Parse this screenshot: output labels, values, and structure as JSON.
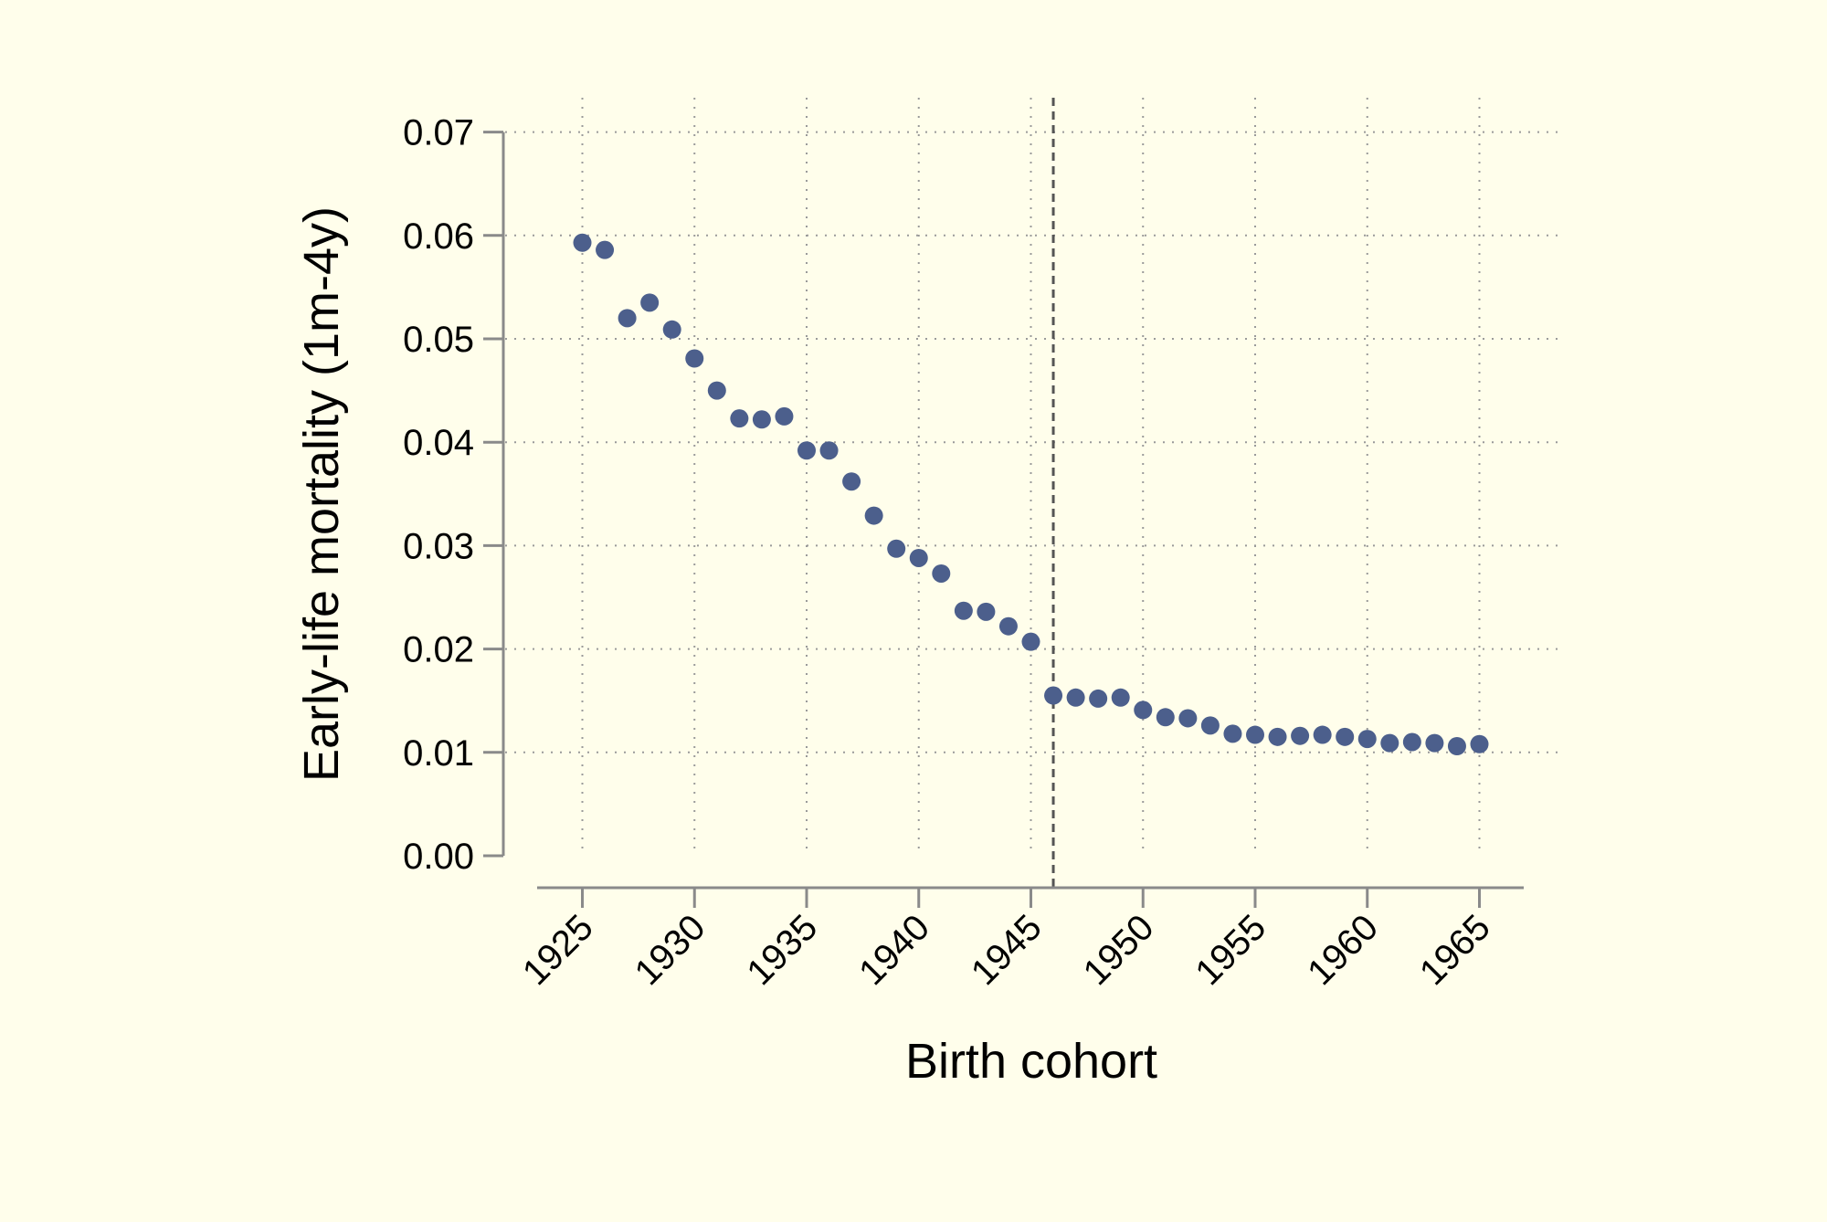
{
  "chart_data": {
    "type": "scatter",
    "title": "",
    "xlabel": "Birth cohort",
    "ylabel": "Early-life mortality (1m-4y)",
    "xlim": [
      1921.6,
      1967.2
    ],
    "ylim": [
      0,
      0.07
    ],
    "xticks": [
      1925,
      1930,
      1935,
      1940,
      1945,
      1950,
      1955,
      1960,
      1965
    ],
    "xtick_labels": [
      "1925",
      "1930",
      "1935",
      "1940",
      "1945",
      "1950",
      "1955",
      "1960",
      "1965"
    ],
    "yticks": [
      0,
      0.01,
      0.02,
      0.03,
      0.04,
      0.05,
      0.06,
      0.07
    ],
    "ytick_labels": [
      "0.00",
      "0.01",
      "0.02",
      "0.03",
      "0.04",
      "0.05",
      "0.06",
      "0.07"
    ],
    "grid": true,
    "reference_line_x": 1946,
    "colors": {
      "background": "#fffeeb",
      "marker": "#4c5f8c",
      "axis": "#8a8a8a",
      "grid": "#9a9a9a",
      "reference_line": "#555555"
    },
    "series": [
      {
        "x": [
          1925,
          1926,
          1927,
          1928,
          1929,
          1930,
          1931,
          1932,
          1933,
          1934,
          1935,
          1936,
          1937,
          1938,
          1939,
          1940,
          1941,
          1942,
          1943,
          1944,
          1945,
          1946,
          1947,
          1948,
          1949,
          1950,
          1951,
          1952,
          1953,
          1954,
          1955,
          1956,
          1957,
          1958,
          1959,
          1960,
          1961,
          1962,
          1963,
          1964,
          1965
        ],
        "y": [
          0.0593,
          0.0586,
          0.052,
          0.0535,
          0.0509,
          0.0481,
          0.045,
          0.0423,
          0.0422,
          0.0425,
          0.0392,
          0.0392,
          0.0362,
          0.0329,
          0.0297,
          0.0288,
          0.0273,
          0.0237,
          0.0236,
          0.0222,
          0.0207,
          0.0155,
          0.0153,
          0.0152,
          0.0153,
          0.0141,
          0.0134,
          0.0133,
          0.0126,
          0.0118,
          0.0117,
          0.0115,
          0.0116,
          0.0117,
          0.0115,
          0.0113,
          0.0109,
          0.011,
          0.0109,
          0.0106,
          0.0108
        ]
      }
    ]
  }
}
